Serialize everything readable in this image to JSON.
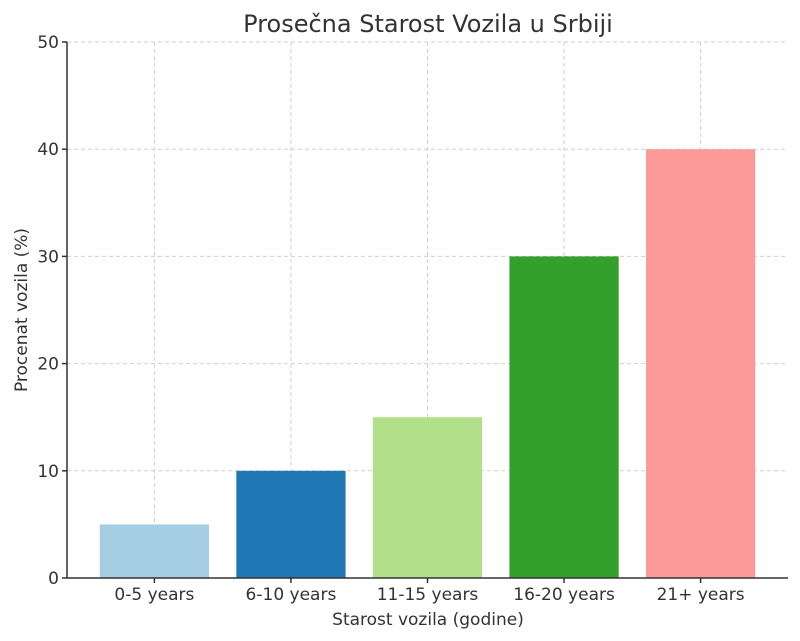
{
  "chart_data": {
    "type": "bar",
    "title": "Prosečna Starost Vozila u Srbiji",
    "xlabel": "Starost vozila (godine)",
    "ylabel": "Procenat vozila (%)",
    "categories": [
      "0-5 years",
      "6-10 years",
      "11-15 years",
      "16-20 years",
      "21+ years"
    ],
    "values": [
      5,
      10,
      15,
      30,
      40
    ],
    "colors": [
      "#a6cee3",
      "#1f78b4",
      "#b2df8a",
      "#33a02c",
      "#fb9a99"
    ],
    "ylim": [
      0,
      50
    ],
    "yticks": [
      "0",
      "10",
      "20",
      "30",
      "40",
      "50"
    ],
    "grid": true,
    "legend": "none"
  }
}
